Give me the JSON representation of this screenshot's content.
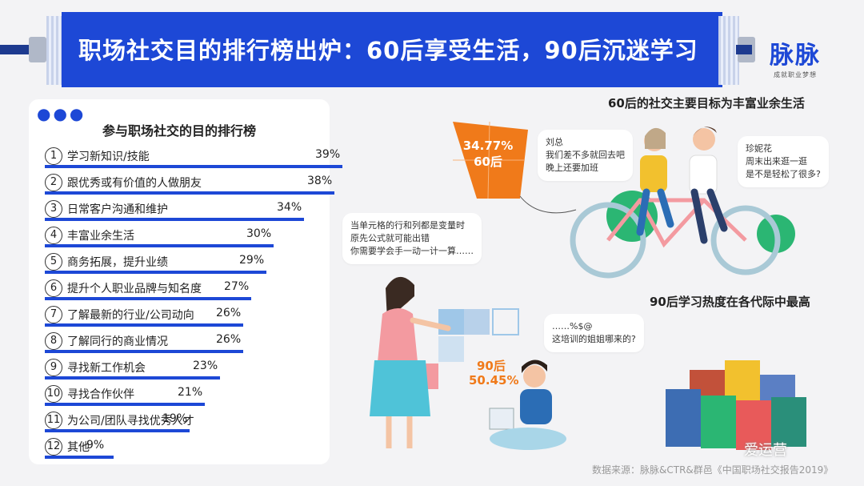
{
  "title": "职场社交目的排行榜出炉：60后享受生活，90后沉迷学习",
  "logo": {
    "name": "脉脉",
    "slogan": "成就职业梦想"
  },
  "chart_data": {
    "type": "bar",
    "title": "参与职场社交的目的排行榜",
    "unit": "%",
    "ranks": [
      "1",
      "2",
      "3",
      "4",
      "5",
      "6",
      "7",
      "8",
      "9",
      "10",
      "11",
      "12"
    ],
    "categories": [
      "学习新知识/技能",
      "跟优秀或有价值的人做朋友",
      "日常客户沟通和维护",
      "丰富业余生活",
      "商务拓展，提升业绩",
      "提升个人职业品牌与知名度",
      "了解最新的行业/公司动向",
      "了解同行的商业情况",
      "寻找新工作机会",
      "寻找合作伙伴",
      "为公司/团队寻找优秀人才",
      "其他"
    ],
    "values": [
      39,
      38,
      34,
      30,
      29,
      27,
      26,
      26,
      23,
      21,
      19,
      9
    ],
    "labels": [
      "39%",
      "38%",
      "34%",
      "30%",
      "29%",
      "27%",
      "26%",
      "26%",
      "23%",
      "21%",
      "19%",
      "9%"
    ]
  },
  "headings": {
    "sixties": "60后的社交主要目标为丰富业余生活",
    "nineties": "90后学习热度在各代际中最高"
  },
  "stats": {
    "sixties_pct": "34.77%",
    "sixties_label": "60后",
    "nineties_label": "90后",
    "nineties_pct": "50.45%"
  },
  "bubbles": {
    "liuzong": [
      "刘总",
      "我们差不多就回去吧",
      "晚上还要加班"
    ],
    "zhennihua": [
      "珍妮花",
      "周末出来逛一逛",
      "是不是轻松了很多?"
    ],
    "teacher": [
      "当单元格的行和列都是变量时",
      "原先公式就可能出错",
      "你需要学会手一动一计一算……"
    ],
    "student": [
      "……%$@",
      "这培训的姐姐哪来的?"
    ]
  },
  "source": "数据来源：脉脉&CTR&群邑《中国职场社交报告2019》",
  "watermark": "爱运营",
  "colors": {
    "brand": "#1d48d6",
    "accent": "#f07a1a",
    "green": "#2bb673",
    "pink": "#f39aa0"
  }
}
